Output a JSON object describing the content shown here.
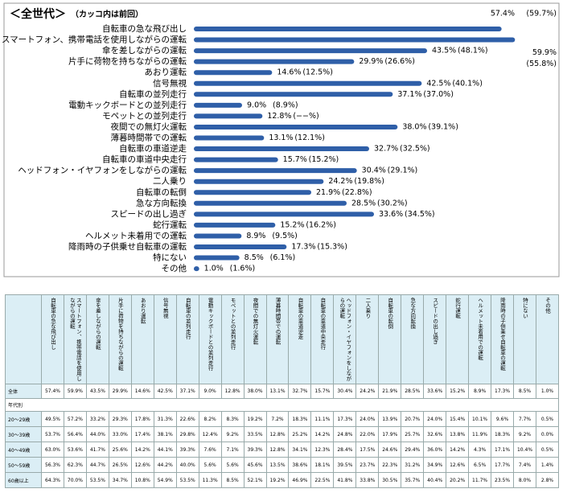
{
  "chart_data": {
    "type": "bar",
    "orientation": "horizontal",
    "title": "＜全世代＞",
    "subtitle": "（カッコ内は前回）",
    "color": "#2f5fa8",
    "xlim": [
      0,
      60
    ],
    "categories": [
      "自転車の急な飛び出し",
      "スマートフォン、携帯電話を使用しながらの運転",
      "傘を差しながらの運転",
      "片手に荷物を持ちながらの運転",
      "あおり運転",
      "信号無視",
      "自転車の並列走行",
      "電動キックボードとの並列走行",
      "モペットとの並列走行",
      "夜間での無灯火運転",
      "薄暮時間帯での運転",
      "自転車の車道逆走",
      "自転車の車道中央走行",
      "ヘッドフォン・イヤフォンをしながらの運転",
      "二人乗り",
      "自転車の転倒",
      "急な方向転換",
      "スピードの出し過ぎ",
      "蛇行運転",
      "ヘルメット未着用での運転",
      "降雨時の子供乗せ自転車の運転",
      "特にない",
      "その他"
    ],
    "values": [
      57.4,
      59.9,
      43.5,
      29.9,
      14.6,
      42.5,
      37.1,
      9.0,
      12.8,
      38.0,
      13.1,
      32.7,
      15.7,
      30.4,
      24.2,
      21.9,
      28.5,
      33.6,
      15.2,
      8.9,
      17.3,
      8.5,
      1.0
    ],
    "value_labels": [
      "57.4%",
      "59.9%",
      "43.5%",
      "29.9%",
      "14.6%",
      "42.5%",
      "37.1%",
      "9.0%",
      "12.8%",
      "38.0%",
      "13.1%",
      "32.7%",
      "15.7%",
      "30.4%",
      "24.2%",
      "21.9%",
      "28.5%",
      "33.6%",
      "15.2%",
      "8.9%",
      "17.3%",
      "8.5%",
      "1.0%"
    ],
    "previous_labels": [
      "(59.7%)",
      "(55.8%)",
      "(48.1%)",
      "(26.6%)",
      "(12.5%)",
      "(40.1%)",
      "(37.0%)",
      "(8.9%)",
      "(−−%)",
      "(39.1%)",
      "(12.1%)",
      "(32.5%)",
      "(15.2%)",
      "(29.1%)",
      "(19.8%)",
      "(22.8%)",
      "(30.2%)",
      "(34.5%)",
      "(16.2%)",
      "(9.5%)",
      "(15.3%)",
      "(6.1%)",
      "(1.6%)"
    ]
  },
  "table": {
    "header": [
      "自転車の急な飛び出し",
      "スマートフォン、携帯電話を使用しながらの運転",
      "傘を差しながらの運転",
      "片手に荷物を持ちながらの運転",
      "あおり運転",
      "信号無視",
      "自転車の並列走行",
      "電動キックボードとの並列走行",
      "モペットとの並列走行",
      "夜間での無灯火運転",
      "薄暮時間帯での運転",
      "自転車の車道逆走",
      "自転車の車道中央走行",
      "ヘッドフォン・イヤフォンをしながらの運転",
      "二人乗り",
      "自転車の転倒",
      "急な方向転換",
      "スピードの出し過ぎ",
      "蛇行運転",
      "ヘルメット未着用での運転",
      "降雨時の子供乗せ自転車の運転",
      "特にない",
      "その他"
    ],
    "rows": [
      [
        "全体",
        "57.4%",
        "59.9%",
        "43.5%",
        "29.9%",
        "14.6%",
        "42.5%",
        "37.1%",
        "9.0%",
        "12.8%",
        "38.0%",
        "13.1%",
        "32.7%",
        "15.7%",
        "30.4%",
        "24.2%",
        "21.9%",
        "28.5%",
        "33.6%",
        "15.2%",
        "8.9%",
        "17.3%",
        "8.5%",
        "1.0%"
      ],
      [
        "年代別"
      ],
      [
        "20〜29歳",
        "49.5%",
        "57.2%",
        "33.2%",
        "29.3%",
        "17.8%",
        "31.3%",
        "22.6%",
        "8.2%",
        "8.3%",
        "19.2%",
        "7.2%",
        "18.3%",
        "11.1%",
        "17.3%",
        "24.0%",
        "13.9%",
        "20.7%",
        "24.0%",
        "15.4%",
        "10.1%",
        "9.6%",
        "7.7%",
        "0.5%"
      ],
      [
        "30〜39歳",
        "53.7%",
        "56.4%",
        "44.0%",
        "33.0%",
        "17.4%",
        "38.1%",
        "29.8%",
        "12.4%",
        "9.2%",
        "33.5%",
        "12.8%",
        "25.2%",
        "14.2%",
        "24.8%",
        "22.0%",
        "17.9%",
        "25.7%",
        "32.6%",
        "13.8%",
        "11.9%",
        "18.3%",
        "9.2%",
        "0.0%"
      ],
      [
        "40〜49歳",
        "63.0%",
        "53.6%",
        "41.7%",
        "25.6%",
        "14.2%",
        "44.1%",
        "39.3%",
        "7.6%",
        "7.1%",
        "39.3%",
        "12.8%",
        "34.1%",
        "12.3%",
        "28.4%",
        "17.5%",
        "24.6%",
        "29.4%",
        "36.0%",
        "14.2%",
        "4.3%",
        "17.1%",
        "10.4%",
        "0.5%"
      ],
      [
        "50〜59歳",
        "56.3%",
        "62.3%",
        "44.7%",
        "26.5%",
        "12.6%",
        "44.2%",
        "40.0%",
        "5.6%",
        "5.6%",
        "45.6%",
        "13.5%",
        "38.6%",
        "18.1%",
        "39.5%",
        "23.7%",
        "22.3%",
        "31.2%",
        "34.9%",
        "12.6%",
        "6.5%",
        "17.7%",
        "7.4%",
        "1.4%"
      ],
      [
        "60歳以上",
        "64.3%",
        "70.0%",
        "53.5%",
        "34.7%",
        "10.8%",
        "54.9%",
        "53.5%",
        "11.3%",
        "8.5%",
        "52.1%",
        "19.2%",
        "46.9%",
        "22.5%",
        "41.8%",
        "33.8%",
        "30.5%",
        "35.7%",
        "40.4%",
        "20.2%",
        "11.7%",
        "23.5%",
        "8.0%",
        "2.8%"
      ]
    ]
  }
}
